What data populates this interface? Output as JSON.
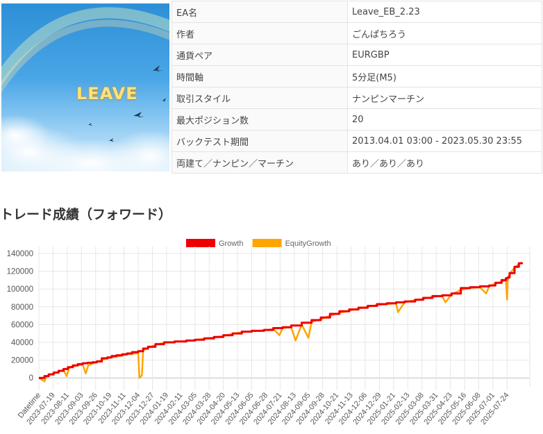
{
  "image": {
    "logo_text": "LEAVE",
    "sky_color": "#3d9ee0",
    "rainbow_color": "#c8e7b0"
  },
  "spec": {
    "rows": [
      {
        "key": "EA名",
        "value": "Leave_EB_2.23"
      },
      {
        "key": "作者",
        "value": "ごんぱちろう"
      },
      {
        "key": "通貨ペア",
        "value": "EURGBP"
      },
      {
        "key": "時間軸",
        "value": "5分足(M5)"
      },
      {
        "key": "取引スタイル",
        "value": "ナンピンマーチン"
      },
      {
        "key": "最大ポジション数",
        "value": "20"
      },
      {
        "key": "バックテスト期間",
        "value": "2013.04.01 03:00 - 2023.05.30 23:55"
      },
      {
        "key": "両建て／ナンピン／マーチン",
        "value": "あり／あり／あり"
      }
    ]
  },
  "section_title": "トレード成績（フォワード）",
  "chart_data": {
    "type": "line",
    "legend": [
      {
        "name": "Growth",
        "color": "#ee0000"
      },
      {
        "name": "EquityGrowth",
        "color": "#ffa500"
      }
    ],
    "legend_position": "top",
    "grid": true,
    "ylim": [
      -10000,
      140000
    ],
    "yticks": [
      0,
      20000,
      40000,
      60000,
      80000,
      100000,
      120000,
      140000
    ],
    "ytick_labels": [
      "0",
      "20000",
      "40000",
      "60000",
      "80000",
      "100000",
      "120000",
      "140000"
    ],
    "xtick_labels": [
      "Datetime",
      "2023-07-19",
      "2023-08-11",
      "2023-09-03",
      "2023-09-26",
      "2023-10-19",
      "2023-11-11",
      "2023-12-04",
      "2023-12-27",
      "2024-01-19",
      "2024-02-11",
      "2024-03-05",
      "2024-03-28",
      "2024-04-20",
      "2024-05-13",
      "2024-06-05",
      "2024-06-28",
      "2024-07-21",
      "2024-08-13",
      "2024-09-05",
      "2024-09-28",
      "2024-10-21",
      "2024-11-13",
      "2024-12-06",
      "2024-12-29",
      "2025-01-21",
      "2025-02-13",
      "2025-03-08",
      "2025-03-31",
      "2025-04-23",
      "2025-05-16",
      "2025-06-08",
      "2025-07-01",
      "2025-07-24"
    ],
    "series": [
      {
        "name": "Growth",
        "x": [
          "2023-06-26",
          "2023-07-05",
          "2023-07-12",
          "2023-07-20",
          "2023-07-28",
          "2023-08-05",
          "2023-08-12",
          "2023-08-20",
          "2023-08-28",
          "2023-09-05",
          "2023-09-13",
          "2023-09-21",
          "2023-09-28",
          "2023-10-06",
          "2023-10-15",
          "2023-10-22",
          "2023-10-30",
          "2023-11-08",
          "2023-11-16",
          "2023-11-24",
          "2023-12-04",
          "2023-12-12",
          "2023-12-20",
          "2024-01-01",
          "2024-01-15",
          "2024-02-01",
          "2024-02-20",
          "2024-03-05",
          "2024-03-20",
          "2024-04-05",
          "2024-04-20",
          "2024-05-05",
          "2024-05-20",
          "2024-06-05",
          "2024-06-25",
          "2024-07-10",
          "2024-07-25",
          "2024-08-08",
          "2024-08-25",
          "2024-09-10",
          "2024-09-25",
          "2024-10-10",
          "2024-10-25",
          "2024-11-10",
          "2024-11-25",
          "2024-12-10",
          "2024-12-25",
          "2025-01-10",
          "2025-01-25",
          "2025-02-08",
          "2025-02-25",
          "2025-03-10",
          "2025-03-25",
          "2025-04-10",
          "2025-04-25",
          "2025-05-10",
          "2025-05-25",
          "2025-06-10",
          "2025-06-25",
          "2025-07-05",
          "2025-07-15",
          "2025-07-22",
          "2025-07-25",
          "2025-07-28",
          "2025-08-05",
          "2025-08-12",
          "2025-08-17"
        ],
        "y": [
          0,
          2000,
          4000,
          6000,
          8000,
          10000,
          12000,
          14000,
          15500,
          16500,
          17000,
          17500,
          18500,
          22000,
          23000,
          24500,
          25500,
          26500,
          27500,
          29000,
          30000,
          33000,
          35000,
          38000,
          40000,
          41000,
          42000,
          43000,
          44500,
          46000,
          48000,
          50000,
          52000,
          53000,
          54000,
          56000,
          57000,
          59000,
          62000,
          65000,
          68000,
          72000,
          75000,
          77000,
          79000,
          81000,
          83000,
          84000,
          85000,
          86000,
          88000,
          90000,
          92000,
          93000,
          95000,
          101000,
          102000,
          103000,
          104000,
          107000,
          110000,
          112000,
          113000,
          118000,
          125000,
          129000,
          130000
        ]
      },
      {
        "name": "EquityGrowth",
        "x": [
          "2023-06-26",
          "2023-07-05",
          "2023-07-08",
          "2023-07-12",
          "2023-07-20",
          "2023-07-28",
          "2023-08-05",
          "2023-08-10",
          "2023-08-14",
          "2023-08-20",
          "2023-08-28",
          "2023-09-05",
          "2023-09-10",
          "2023-09-14",
          "2023-09-21",
          "2023-09-28",
          "2023-10-06",
          "2023-10-15",
          "2023-10-22",
          "2023-10-30",
          "2023-11-08",
          "2023-11-16",
          "2023-11-24",
          "2023-12-04",
          "2023-12-06",
          "2023-12-10",
          "2023-12-12",
          "2023-12-20",
          "2024-01-01",
          "2024-01-15",
          "2024-02-01",
          "2024-02-20",
          "2024-03-05",
          "2024-03-20",
          "2024-04-05",
          "2024-04-20",
          "2024-05-05",
          "2024-05-20",
          "2024-06-05",
          "2024-06-25",
          "2024-07-10",
          "2024-07-20",
          "2024-07-25",
          "2024-08-08",
          "2024-08-15",
          "2024-08-25",
          "2024-09-05",
          "2024-09-10",
          "2024-09-25",
          "2024-10-10",
          "2024-10-25",
          "2024-11-10",
          "2024-11-25",
          "2024-12-10",
          "2024-12-25",
          "2025-01-10",
          "2025-01-25",
          "2025-01-28",
          "2025-02-08",
          "2025-02-25",
          "2025-03-10",
          "2025-03-25",
          "2025-04-10",
          "2025-04-15",
          "2025-04-25",
          "2025-05-10",
          "2025-05-25",
          "2025-06-10",
          "2025-06-20",
          "2025-06-25",
          "2025-07-05",
          "2025-07-15",
          "2025-07-22",
          "2025-07-24",
          "2025-07-25",
          "2025-07-28",
          "2025-08-05",
          "2025-08-12",
          "2025-08-17"
        ],
        "y": [
          0,
          -4000,
          1000,
          3500,
          5000,
          7000,
          9000,
          2000,
          11000,
          13000,
          14000,
          15000,
          5000,
          14000,
          16000,
          18000,
          20000,
          22000,
          23000,
          24000,
          25000,
          26500,
          27000,
          28000,
          0,
          3000,
          31000,
          34000,
          37000,
          39500,
          40500,
          41500,
          42500,
          44000,
          45500,
          47000,
          49500,
          51500,
          52500,
          53500,
          55000,
          48000,
          56000,
          57000,
          42000,
          60000,
          45000,
          63000,
          66000,
          70000,
          73000,
          75500,
          78000,
          80000,
          82000,
          83000,
          84000,
          74000,
          85000,
          87500,
          89000,
          91000,
          92000,
          85000,
          94000,
          99000,
          101000,
          102000,
          95000,
          103000,
          106000,
          108000,
          110000,
          88000,
          111000,
          117000,
          124000,
          128000,
          130000
        ]
      }
    ]
  }
}
